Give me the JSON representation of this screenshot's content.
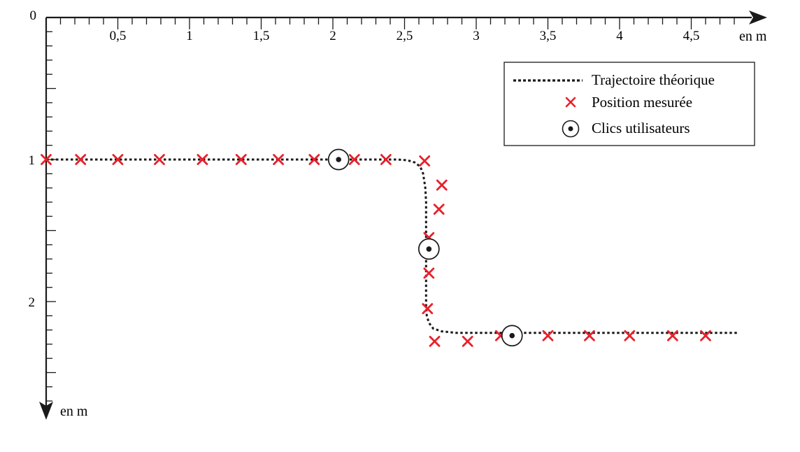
{
  "chart_data": {
    "type": "scatter",
    "title": "",
    "x_axis": {
      "label": "en m",
      "range": [
        0,
        4.85
      ],
      "tick_labels": [
        {
          "value": 0.5,
          "text": "0,5"
        },
        {
          "value": 1,
          "text": "1"
        },
        {
          "value": 1.5,
          "text": "1,5"
        },
        {
          "value": 2,
          "text": "2"
        },
        {
          "value": 2.5,
          "text": "2,5"
        },
        {
          "value": 3,
          "text": "3"
        },
        {
          "value": 3.5,
          "text": "3,5"
        },
        {
          "value": 4,
          "text": "4"
        },
        {
          "value": 4.5,
          "text": "4,5"
        }
      ],
      "minor_tick_step": 0.1
    },
    "y_axis": {
      "label": "en m",
      "orientation": "downward",
      "range": [
        0,
        2.7
      ],
      "origin_label": "0",
      "tick_labels": [
        {
          "value": 1,
          "text": "1"
        },
        {
          "value": 2,
          "text": "2"
        }
      ],
      "minor_tick_step": 0.1
    },
    "legend": {
      "placement": "top-right",
      "items": [
        {
          "label": "Trajectoire théorique",
          "marker": "dotted-line",
          "color": "#1a1a1a"
        },
        {
          "label": "Position mesurée",
          "marker": "cross",
          "color": "#e8202a"
        },
        {
          "label": "Clics utilisateurs",
          "marker": "circled-dot",
          "color": "#1a1a1a"
        }
      ]
    },
    "series": [
      {
        "name": "Trajectoire théorique",
        "kind": "line",
        "style": "dotted",
        "color": "#1a1a1a",
        "x": [
          0,
          2.45,
          2.52,
          2.57,
          2.61,
          2.63,
          2.645,
          2.65,
          2.65,
          2.655,
          2.67,
          2.7,
          2.76,
          2.86,
          4.82
        ],
        "y": [
          1,
          1,
          1.005,
          1.02,
          1.05,
          1.1,
          1.2,
          1.3,
          2.03,
          2.1,
          2.15,
          2.19,
          2.21,
          2.22,
          2.22
        ]
      },
      {
        "name": "Position mesurée",
        "kind": "scatter",
        "marker": "cross",
        "color": "#e8202a",
        "x": [
          0,
          0.24,
          0.5,
          0.79,
          1.09,
          1.36,
          1.62,
          1.87,
          2.15,
          2.37,
          2.64,
          2.76,
          2.74,
          2.67,
          2.67,
          2.66,
          2.71,
          2.94,
          3.17,
          3.5,
          3.79,
          4.07,
          4.37,
          4.6
        ],
        "y": [
          1,
          1,
          1,
          1,
          1,
          1,
          1,
          1,
          1,
          1,
          1.01,
          1.18,
          1.35,
          1.55,
          1.8,
          2.05,
          2.28,
          2.28,
          2.24,
          2.24,
          2.24,
          2.24,
          2.24,
          2.24
        ]
      },
      {
        "name": "Clics utilisateurs",
        "kind": "scatter",
        "marker": "circled-dot",
        "color": "#1a1a1a",
        "x": [
          2.04,
          2.67,
          3.25
        ],
        "y": [
          1,
          1.63,
          2.24
        ]
      }
    ]
  }
}
